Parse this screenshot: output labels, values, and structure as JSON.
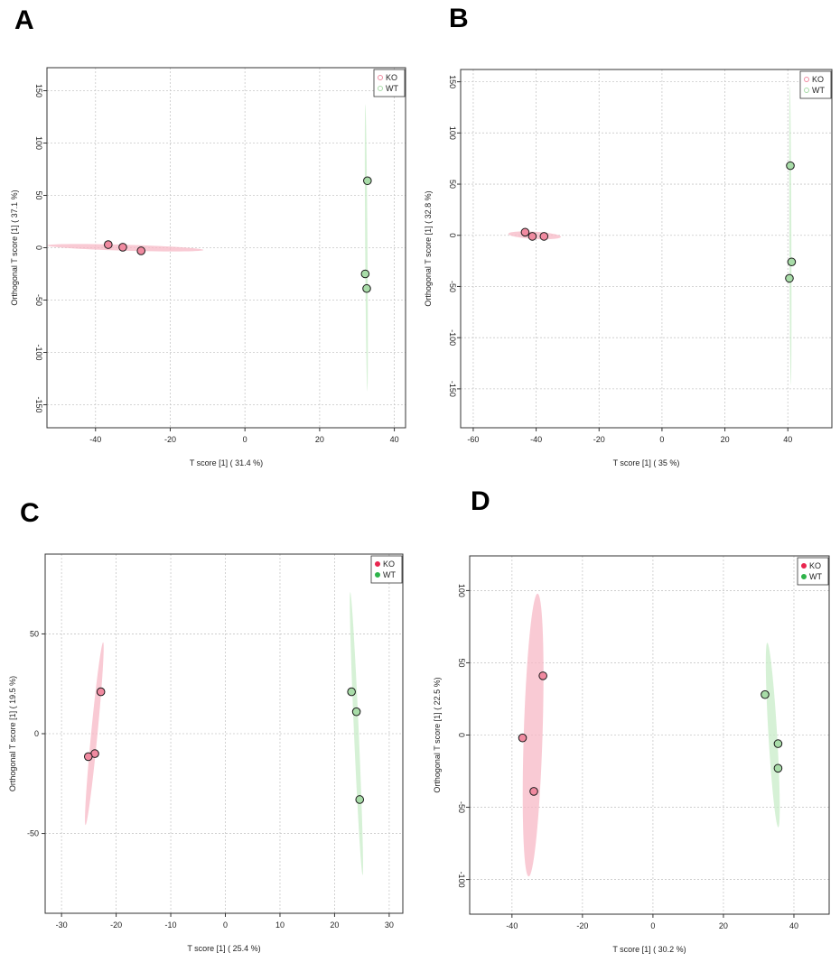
{
  "colors": {
    "ko_fill": "#f08aa0",
    "ko_ellipse": "#f7b8c6",
    "ko_solid": "#e8264f",
    "wt_fill": "#a8dca8",
    "wt_ellipse": "#c8ecc8",
    "wt_solid": "#2fb34a",
    "grid": "#c8c8c8",
    "axis": "#333333"
  },
  "chart_data": [
    {
      "panel": "A",
      "type": "scatter",
      "xlabel": "T score [1] ( 31.4 %)",
      "ylabel": "Orthogonal T score [1] ( 37.1 %)",
      "xlim": [
        -53,
        43
      ],
      "ylim": [
        -172,
        172
      ],
      "xticks": [
        -40,
        -20,
        0,
        20,
        40
      ],
      "yticks": [
        -150,
        -100,
        -50,
        0,
        50,
        100,
        150
      ],
      "ytick_rotated": true,
      "legend_style": "hollow",
      "legend": [
        "KO",
        "WT"
      ],
      "series": [
        {
          "name": "KO",
          "points": [
            [
              -36.6,
              3
            ],
            [
              -32.7,
              0.5
            ],
            [
              -27.8,
              -3
            ]
          ],
          "ellipse": {
            "cx": -32,
            "cy": 0,
            "rx": 21,
            "ry": 2.8,
            "angle": -6
          }
        },
        {
          "name": "WT",
          "points": [
            [
              32.8,
              64
            ],
            [
              32.2,
              -25
            ],
            [
              32.6,
              -39
            ]
          ],
          "ellipse": {
            "cx": 32.5,
            "cy": 0,
            "rx": 137,
            "ry": 1.1,
            "angle": 90.4
          }
        }
      ]
    },
    {
      "panel": "B",
      "type": "scatter",
      "xlabel": "T score [1] ( 35 %)",
      "ylabel": "Orthogonal T score [1] ( 32.8 %)",
      "xlim": [
        -64,
        54
      ],
      "ylim": [
        -188,
        162
      ],
      "xticks": [
        -60,
        -40,
        -20,
        0,
        20,
        40
      ],
      "yticks": [
        -150,
        -100,
        -50,
        0,
        50,
        100,
        150
      ],
      "ytick_rotated": true,
      "legend_style": "hollow",
      "legend": [
        "KO",
        "WT"
      ],
      "series": [
        {
          "name": "KO",
          "points": [
            [
              -43.5,
              3
            ],
            [
              -41.2,
              -1
            ],
            [
              -37.5,
              -1
            ]
          ],
          "ellipse": {
            "cx": -40.5,
            "cy": 0,
            "rx": 8.5,
            "ry": 3.5,
            "angle": -12
          }
        },
        {
          "name": "WT",
          "points": [
            [
              40.8,
              68
            ],
            [
              41.2,
              -26
            ],
            [
              40.5,
              -42
            ]
          ],
          "ellipse": {
            "cx": 40.8,
            "cy": 0,
            "rx": 146,
            "ry": 1.0,
            "angle": 90.2
          }
        }
      ]
    },
    {
      "panel": "C",
      "type": "scatter",
      "xlabel": "T score [1] ( 25.4 %)",
      "ylabel": "Orthogonal T score [1] ( 19.5 %)",
      "xlim": [
        -33,
        32.5
      ],
      "ylim": [
        -90,
        90
      ],
      "xticks": [
        -30,
        -20,
        -10,
        0,
        10,
        20,
        30
      ],
      "yticks": [
        -50,
        0,
        50
      ],
      "ytick_rotated": false,
      "legend_style": "solid",
      "legend": [
        "KO",
        "WT"
      ],
      "series": [
        {
          "name": "KO",
          "points": [
            [
              -22.8,
              21
            ],
            [
              -23.9,
              -10
            ],
            [
              -25.1,
              -11.5
            ]
          ],
          "ellipse": {
            "cx": -24,
            "cy": 0,
            "rx": 46,
            "ry": 1.6,
            "angle": 84.5
          }
        },
        {
          "name": "WT",
          "points": [
            [
              23.1,
              21
            ],
            [
              24.0,
              11
            ],
            [
              24.6,
              -33
            ]
          ],
          "ellipse": {
            "cx": 24,
            "cy": 0,
            "rx": 71,
            "ry": 1.2,
            "angle": -87.5
          }
        }
      ]
    },
    {
      "panel": "D",
      "type": "scatter",
      "xlabel": "T score [1] ( 30.2 %)",
      "ylabel": "Orthogonal T score [1] ( 22.5 %)",
      "xlim": [
        -52,
        50
      ],
      "ylim": [
        -124,
        124
      ],
      "xticks": [
        -40,
        -20,
        0,
        20,
        40
      ],
      "yticks": [
        -100,
        -50,
        0,
        50,
        100
      ],
      "ytick_rotated": true,
      "legend_style": "solid",
      "legend": [
        "KO",
        "WT"
      ],
      "series": [
        {
          "name": "KO",
          "points": [
            [
              -31.2,
              41
            ],
            [
              -37.0,
              -2
            ],
            [
              -33.8,
              -39
            ]
          ],
          "ellipse": {
            "cx": -34,
            "cy": 0,
            "rx": 98,
            "ry": 6.5,
            "angle": 88.2
          }
        },
        {
          "name": "WT",
          "points": [
            [
              31.8,
              28
            ],
            [
              35.5,
              -6
            ],
            [
              35.5,
              -23
            ]
          ],
          "ellipse": {
            "cx": 34,
            "cy": 0,
            "rx": 64,
            "ry": 3.0,
            "angle": -86.6
          }
        }
      ]
    }
  ]
}
